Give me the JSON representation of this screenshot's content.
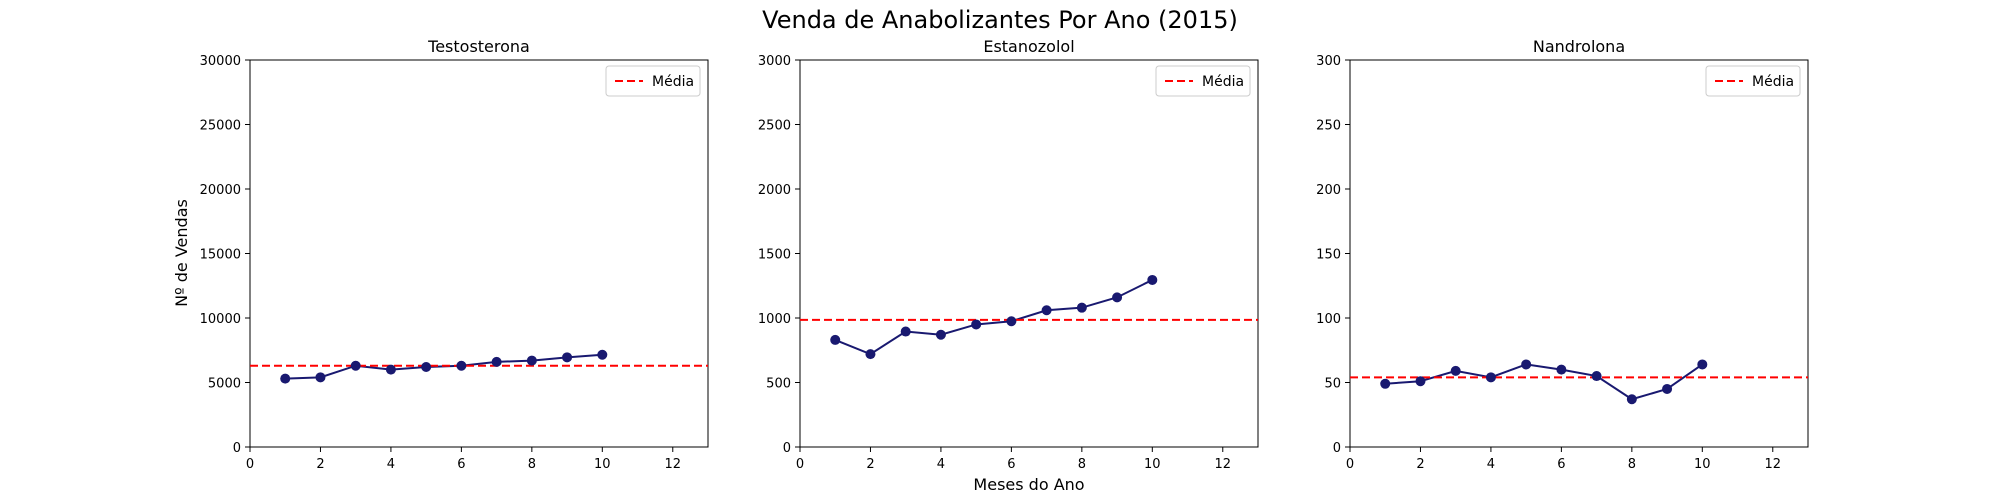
{
  "figure": {
    "title": "Venda de Anabolizantes Por Ano (2015)",
    "xlabel": "Meses do Ano",
    "ylabel": "Nº de Vendas"
  },
  "colors": {
    "line": "#191970",
    "mean": "#ff0000",
    "axis": "#000000",
    "legend_border": "#cccccc"
  },
  "chart_data": [
    {
      "type": "line",
      "title": "Testosterona",
      "x": [
        1,
        2,
        3,
        4,
        5,
        6,
        7,
        8,
        9,
        10
      ],
      "series": [
        {
          "values": [
            5300,
            5400,
            6300,
            6000,
            6200,
            6300,
            6600,
            6700,
            6950,
            7150
          ]
        },
        {
          "name": "Média",
          "style": "dashed",
          "constant": 6300
        }
      ],
      "xlim": [
        0,
        13
      ],
      "ylim": [
        0,
        30000
      ],
      "xticks": [
        0,
        2,
        4,
        6,
        8,
        10,
        12
      ],
      "yticks": [
        0,
        5000,
        10000,
        15000,
        20000,
        25000,
        30000
      ],
      "legend": "top-right",
      "grid": false
    },
    {
      "type": "line",
      "title": "Estanozolol",
      "x": [
        1,
        2,
        3,
        4,
        5,
        6,
        7,
        8,
        9,
        10
      ],
      "series": [
        {
          "values": [
            830,
            720,
            895,
            870,
            950,
            975,
            1060,
            1080,
            1160,
            1295
          ]
        },
        {
          "name": "Média",
          "style": "dashed",
          "constant": 985
        }
      ],
      "xlim": [
        0,
        13
      ],
      "ylim": [
        0,
        3000
      ],
      "xticks": [
        0,
        2,
        4,
        6,
        8,
        10,
        12
      ],
      "yticks": [
        0,
        500,
        1000,
        1500,
        2000,
        2500,
        3000
      ],
      "legend": "top-right",
      "grid": false
    },
    {
      "type": "line",
      "title": "Nandrolona",
      "x": [
        1,
        2,
        3,
        4,
        5,
        6,
        7,
        8,
        9,
        10
      ],
      "series": [
        {
          "values": [
            49,
            51,
            59,
            54,
            64,
            60,
            55,
            37,
            45,
            64
          ]
        },
        {
          "name": "Média",
          "style": "dashed",
          "constant": 54
        }
      ],
      "xlim": [
        0,
        13
      ],
      "ylim": [
        0,
        300
      ],
      "xticks": [
        0,
        2,
        4,
        6,
        8,
        10,
        12
      ],
      "yticks": [
        0,
        50,
        100,
        150,
        200,
        250,
        300
      ],
      "legend": "top-right",
      "grid": false
    }
  ]
}
